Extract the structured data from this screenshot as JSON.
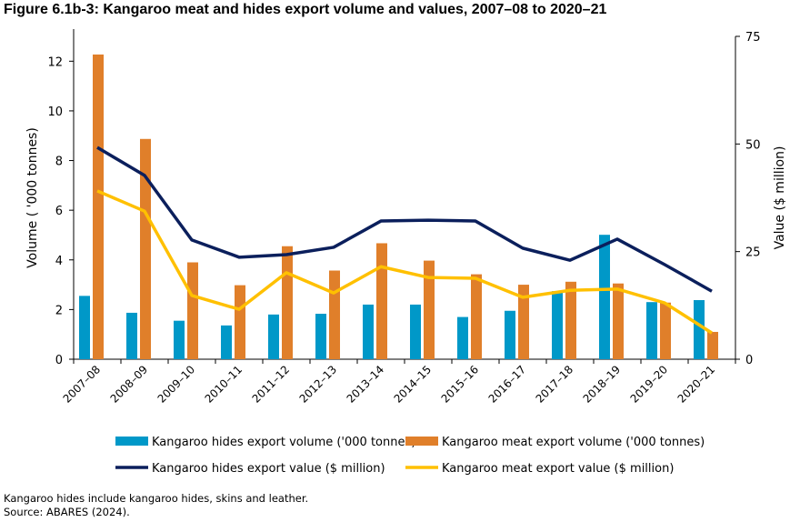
{
  "title": "Figure 6.1b-3: Kangaroo meat and hides export volume and values, 2007–08 to 2020–21",
  "notes": [
    "Kangaroo hides include kangaroo hides, skins and leather.",
    "Source: ABARES (2024)."
  ],
  "chart_data": {
    "type": "bar+line",
    "categories": [
      "2007–08",
      "2008–09",
      "2009–10",
      "2010–11",
      "2011–12",
      "2012–13",
      "2013–14",
      "2014–15",
      "2015–16",
      "2016–17",
      "2017–18",
      "2018–19",
      "2019–20",
      "2020–21"
    ],
    "ylabel": "Volume ( '000 tonnes)",
    "y2label": "Value ($ million)",
    "ylim": [
      0,
      13
    ],
    "yticks": [
      0,
      2,
      4,
      6,
      8,
      10,
      12
    ],
    "y2lim": [
      0,
      75
    ],
    "y2ticks": [
      0,
      25,
      50,
      75
    ],
    "grid": false,
    "legend_placement": "bottom",
    "series": [
      {
        "name": "Kangaroo hides export volume ('000 tonnes)",
        "kind": "bar",
        "axis": "left",
        "color": "#0098C8",
        "values": [
          2.55,
          1.87,
          1.55,
          1.36,
          1.8,
          1.83,
          2.2,
          2.2,
          1.7,
          1.95,
          2.74,
          5.01,
          2.3,
          2.38
        ]
      },
      {
        "name": "Kangaroo meat export volume ('000 tonnes)",
        "kind": "bar",
        "axis": "left",
        "color": "#E07F2A",
        "values": [
          12.27,
          8.87,
          3.9,
          2.98,
          4.55,
          3.57,
          4.67,
          3.97,
          3.42,
          3.0,
          3.12,
          3.05,
          2.28,
          1.1
        ]
      },
      {
        "name": "Kangaroo hides export value ($ million)",
        "kind": "line",
        "axis": "right",
        "color": "#0B1F5C",
        "values": [
          49.2,
          42.7,
          27.7,
          23.7,
          24.3,
          26.0,
          32.1,
          32.3,
          32.1,
          25.8,
          23.0,
          27.9,
          22.0,
          15.8
        ]
      },
      {
        "name": "Kangaroo meat export value ($ million)",
        "kind": "line",
        "axis": "right",
        "color": "#FFC000",
        "values": [
          39.1,
          34.4,
          14.8,
          11.6,
          20.1,
          15.4,
          21.5,
          19.0,
          18.8,
          14.4,
          16.0,
          16.3,
          13.1,
          6.1
        ]
      }
    ]
  }
}
